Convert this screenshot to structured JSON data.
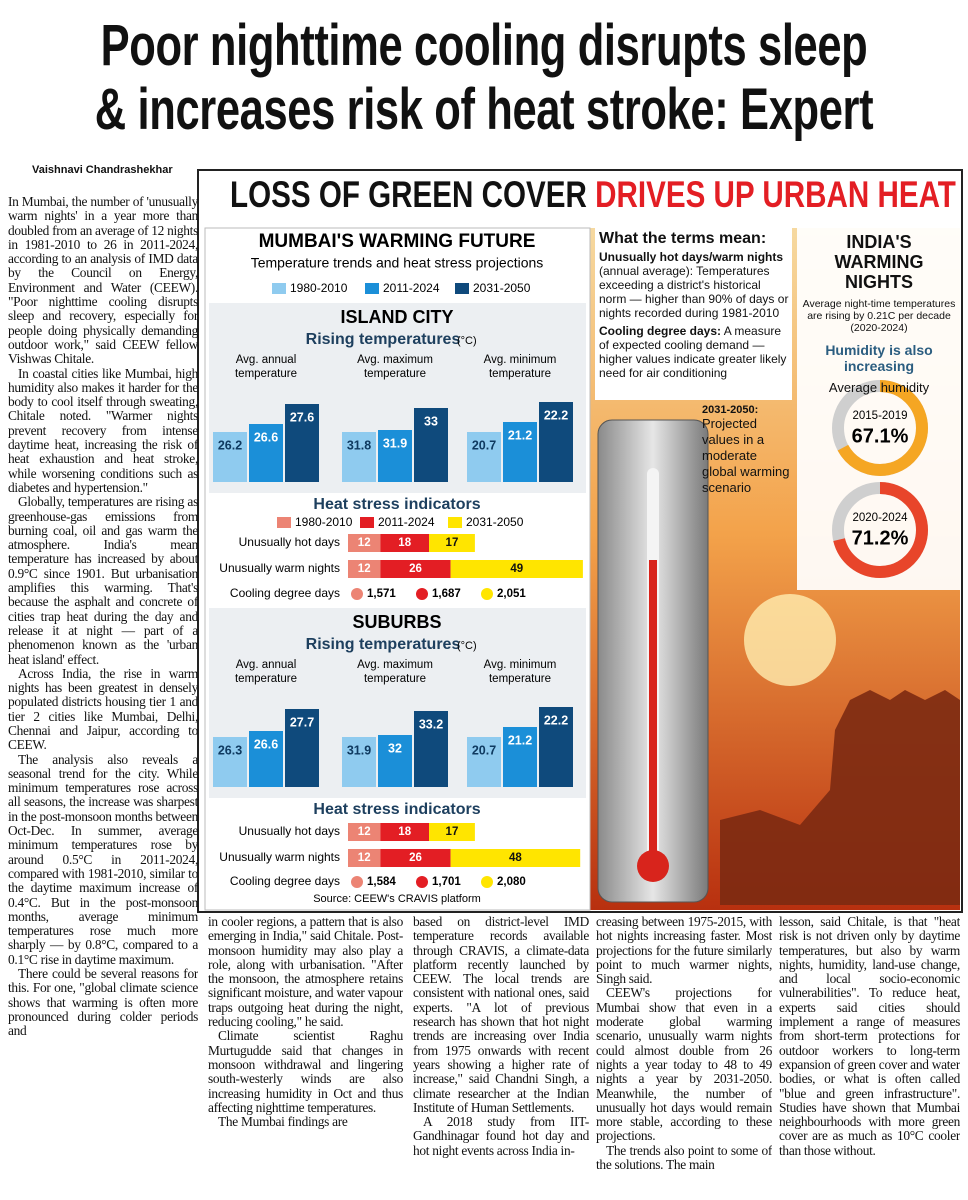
{
  "headline": [
    "Poor nighttime cooling disrupts sleep",
    "& increases risk of heat stroke: Expert"
  ],
  "byline": "Vaishnavi Chandrashekhar",
  "article": {
    "columns": [
      [
        "In Mumbai, the number of 'unusually warm nights' in a year more than doubled from an average of 12 nights in 1981-2010 to 26 in 2011-2024, according to an analysis of IMD data by the Council on Energy, Environment and Water (CEEW). \"Poor nighttime cooling disrupts sleep and recovery, especially for people doing physically demanding outdoor work,\" said CEEW fellow Vishwas Chitale.",
        "In coastal cities like Mumbai, high humidity also makes it harder for the body to cool itself through sweating, Chitale noted. \"Warmer nights prevent recovery from intense daytime heat, increasing the risk of heat exhaustion and heat stroke, while worsening conditions such as diabetes and hypertension.\"",
        "Globally, temperatures are rising as greenhouse-gas emissions from burning coal, oil and gas warm the atmosphere. India's mean temperature has increased by about 0.9°C since 1901. But urbanisation amplifies this warming. That's because the asphalt and concrete of cities trap heat during the day and release it at night — part of a phenomenon known as the 'urban heat island' effect.",
        "Across India, the rise in warm nights has been greatest in densely populated districts housing tier 1 and tier 2 cities like Mumbai, Delhi, Chennai and Jaipur, according to CEEW.",
        "The analysis also reveals a seasonal trend for the city. While minimum temperatures rose across all seasons, the increase was sharpest in the post-monsoon months between Oct-Dec. In summer, average minimum temperatures rose by around 0.5°C in 2011-2024, compared with 1981-2010, similar to the daytime maximum increase of 0.4°C. But in the post-monsoon months, average minimum temperatures rose much more sharply — by 0.8°C, compared to a 0.1°C rise in daytime maximum.",
        "There could be several reasons for this. For one, \"global climate science shows that warming is often more pronounced during colder periods and"
      ],
      [
        "in cooler regions, a pattern that is also emerging in India,\" said Chitale. Post-monsoon humidity may also play a role, along with urbanisation. \"After the monsoon, the atmosphere retains significant moisture, and water vapour traps outgoing heat during the night, reducing cooling,\" he said.",
        "Climate scientist Raghu Murtugudde said that changes in monsoon withdrawal and lingering south-westerly winds are also increasing humidity in Oct and thus affecting nighttime temperatures.",
        "The Mumbai findings are"
      ],
      [
        "based on district-level IMD temperature records available through CRAVIS, a climate-data platform recently launched by CEEW. The local trends are consistent with national ones, said experts. \"A lot of previous research has shown that hot night trends are increasing over India from 1975 onwards with recent years showing a higher rate of increase,\" said Chandni Singh, a climate researcher at the Indian Institute of Human Settlements.",
        "A 2018 study from IIT-Gandhinagar found hot day and hot night events across India in-"
      ],
      [
        "creasing between 1975-2015, with hot nights increasing faster. Most projections for the future similarly point to much warmer nights, Singh said.",
        "CEEW's projections for Mumbai show that even in a moderate global warming scenario, unusually warm nights could almost double from 26 nights a year today to 48 to 49 nights a year by 2031-2050. Meanwhile, the number of unusually hot days would remain more stable, according to these projections.",
        "The trends also point to some of the solutions. The main"
      ],
      [
        "lesson, said Chitale, is that \"heat risk is not driven only by daytime temperatures, but also by warm nights, humidity, land-use change, and local socio-economic vulnerabilities\". To reduce heat, experts said cities should implement a range of measures from short-term protections for outdoor workers to long-term expansion of green cover and water bodies, or what is often called \"blue and green infrastructure\". Studies have shown that Mumbai neighbourhoods with more green cover are as much as 10°C cooler than those without."
      ]
    ]
  },
  "infographic": {
    "title": {
      "part1": "LOSS OF GREEN COVER",
      "part2": "DRIVES UP URBAN HEAT"
    },
    "mumbai": {
      "title": "MUMBAI'S WARMING FUTURE",
      "subtitle": "Temperature trends and heat stress projections",
      "periods": [
        {
          "label": "1980-2010",
          "color": "#8fcbef"
        },
        {
          "label": "2011-2024",
          "color": "#1b8fd8"
        },
        {
          "label": "2031-2050",
          "color": "#0f4a7c"
        }
      ],
      "heat_periods": [
        {
          "label": "1980-2010",
          "color": "#ec8474"
        },
        {
          "label": "2011-2024",
          "color": "#e31e24"
        },
        {
          "label": "2031-2050",
          "color": "#ffe500"
        }
      ],
      "sections": [
        {
          "name": "ISLAND CITY",
          "temp_title": "Rising temperatures",
          "temp_unit": "(°C)",
          "groups": [
            {
              "label": [
                "Avg. annual",
                "temperature"
              ],
              "values": [
                26.2,
                26.6,
                27.6
              ]
            },
            {
              "label": [
                "Avg. maximum",
                "temperature"
              ],
              "values": [
                31.8,
                31.9,
                33
              ]
            },
            {
              "label": [
                "Avg. minimum",
                "temperature"
              ],
              "values": [
                20.7,
                21.2,
                22.2
              ]
            }
          ],
          "stress_title": "Heat stress indicators",
          "indicators": [
            {
              "label": "Unusually hot days",
              "values": [
                12,
                18,
                17
              ]
            },
            {
              "label": "Unusually warm nights",
              "values": [
                12,
                26,
                49
              ]
            },
            {
              "label": "Cooling degree days",
              "values": [
                1571,
                1687,
                2051
              ],
              "value_labels": [
                "1,571",
                "1,687",
                "2,051"
              ]
            }
          ]
        },
        {
          "name": "SUBURBS",
          "temp_title": "Rising temperatures",
          "temp_unit": "(°C)",
          "groups": [
            {
              "label": [
                "Avg. annual",
                "temperature"
              ],
              "values": [
                26.3,
                26.6,
                27.7
              ]
            },
            {
              "label": [
                "Avg. maximum",
                "temperature"
              ],
              "values": [
                31.9,
                32,
                33.2
              ]
            },
            {
              "label": [
                "Avg. minimum",
                "temperature"
              ],
              "values": [
                20.7,
                21.2,
                22.2
              ]
            }
          ],
          "stress_title": "Heat stress indicators",
          "indicators": [
            {
              "label": "Unusually hot days",
              "values": [
                12,
                18,
                17
              ]
            },
            {
              "label": "Unusually warm nights",
              "values": [
                12,
                26,
                48
              ]
            },
            {
              "label": "Cooling degree days",
              "values": [
                1584,
                1701,
                2080
              ],
              "value_labels": [
                "1,584",
                "1,701",
                "2,080"
              ]
            }
          ]
        }
      ],
      "source": "Source: CEEW's CRAVIS platform"
    },
    "terms": {
      "title": "What the terms mean:",
      "items": [
        {
          "term": "Unusually hot days/warm nights",
          "text": "(annual average): Temperatures exceeding a district's historical norm — higher than 90% of days or nights recorded during 1981-2010"
        },
        {
          "term": "Cooling degree days:",
          "text": "A measure of expected cooling demand — higher values indicate greater likely need for air conditioning"
        }
      ],
      "projection": {
        "term": "2031-2050:",
        "text": "Projected values in a moderate global warming scenario"
      }
    },
    "india": {
      "title": "INDIA'S WARMING NIGHTS",
      "subtitle": "Average night-time temperatures are rising by 0.21C per decade (2020-2024)",
      "humidity_title": "Humidity is also increasing",
      "humidity_label": "Average humidity",
      "donuts": [
        {
          "label": "2015-2019",
          "value": 67.1,
          "value_label": "67.1%",
          "color": "#f5a623"
        },
        {
          "label": "2020-2024",
          "value": 71.2,
          "value_label": "71.2%",
          "color": "#e8452a"
        }
      ]
    }
  }
}
